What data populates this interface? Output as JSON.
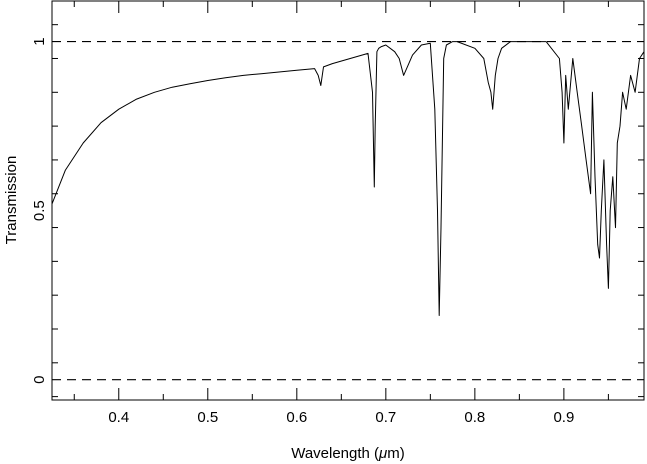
{
  "chart_data": {
    "type": "line",
    "title": "",
    "xlabel": "Wavelength (",
    "xlabel_mu": "μ",
    "xlabel_unit": "m)",
    "ylabel": "Transmission",
    "xlim": [
      0.325,
      0.99
    ],
    "ylim": [
      -0.06,
      1.12
    ],
    "x_ticks": [
      0.4,
      0.5,
      0.6,
      0.7,
      0.8,
      0.9
    ],
    "x_tick_labels": [
      "0.4",
      "0.5",
      "0.6",
      "0.7",
      "0.8",
      "0.9"
    ],
    "y_ticks": [
      0,
      0.5,
      1
    ],
    "y_tick_labels": [
      "0",
      "0.5",
      "1"
    ],
    "reference_lines": [
      0,
      1
    ],
    "grid": false,
    "series": [
      {
        "values_x": [
          0.325,
          0.34,
          0.36,
          0.38,
          0.4,
          0.42,
          0.44,
          0.46,
          0.48,
          0.5,
          0.52,
          0.54,
          0.56,
          0.58,
          0.6,
          0.62,
          0.624,
          0.627,
          0.63,
          0.64,
          0.66,
          0.68,
          0.685,
          0.687,
          0.688,
          0.69,
          0.692,
          0.695,
          0.7,
          0.71,
          0.715,
          0.72,
          0.725,
          0.73,
          0.74,
          0.75,
          0.755,
          0.758,
          0.76,
          0.762,
          0.765,
          0.768,
          0.775,
          0.78,
          0.8,
          0.81,
          0.815,
          0.818,
          0.82,
          0.823,
          0.826,
          0.83,
          0.84,
          0.86,
          0.88,
          0.895,
          0.898,
          0.9,
          0.902,
          0.905,
          0.91,
          0.915,
          0.92,
          0.925,
          0.93,
          0.932,
          0.935,
          0.938,
          0.94,
          0.942,
          0.945,
          0.948,
          0.95,
          0.952,
          0.955,
          0.958,
          0.96,
          0.963,
          0.966,
          0.97,
          0.975,
          0.98,
          0.985,
          0.99
        ],
        "values_y": [
          0.52,
          0.62,
          0.7,
          0.76,
          0.8,
          0.83,
          0.85,
          0.865,
          0.875,
          0.885,
          0.893,
          0.9,
          0.905,
          0.91,
          0.915,
          0.92,
          0.9,
          0.87,
          0.925,
          0.935,
          0.95,
          0.965,
          0.85,
          0.57,
          0.75,
          0.97,
          0.98,
          0.985,
          0.99,
          0.97,
          0.95,
          0.9,
          0.93,
          0.96,
          0.99,
          0.995,
          0.8,
          0.5,
          0.19,
          0.45,
          0.95,
          0.99,
          1.0,
          1.0,
          0.98,
          0.95,
          0.88,
          0.85,
          0.8,
          0.9,
          0.95,
          0.98,
          1.0,
          1.0,
          1.0,
          0.95,
          0.85,
          0.7,
          0.9,
          0.8,
          0.95,
          0.85,
          0.75,
          0.65,
          0.55,
          0.85,
          0.6,
          0.4,
          0.36,
          0.5,
          0.65,
          0.4,
          0.27,
          0.5,
          0.6,
          0.45,
          0.7,
          0.75,
          0.85,
          0.8,
          0.9,
          0.85,
          0.95,
          0.97
        ]
      }
    ]
  }
}
